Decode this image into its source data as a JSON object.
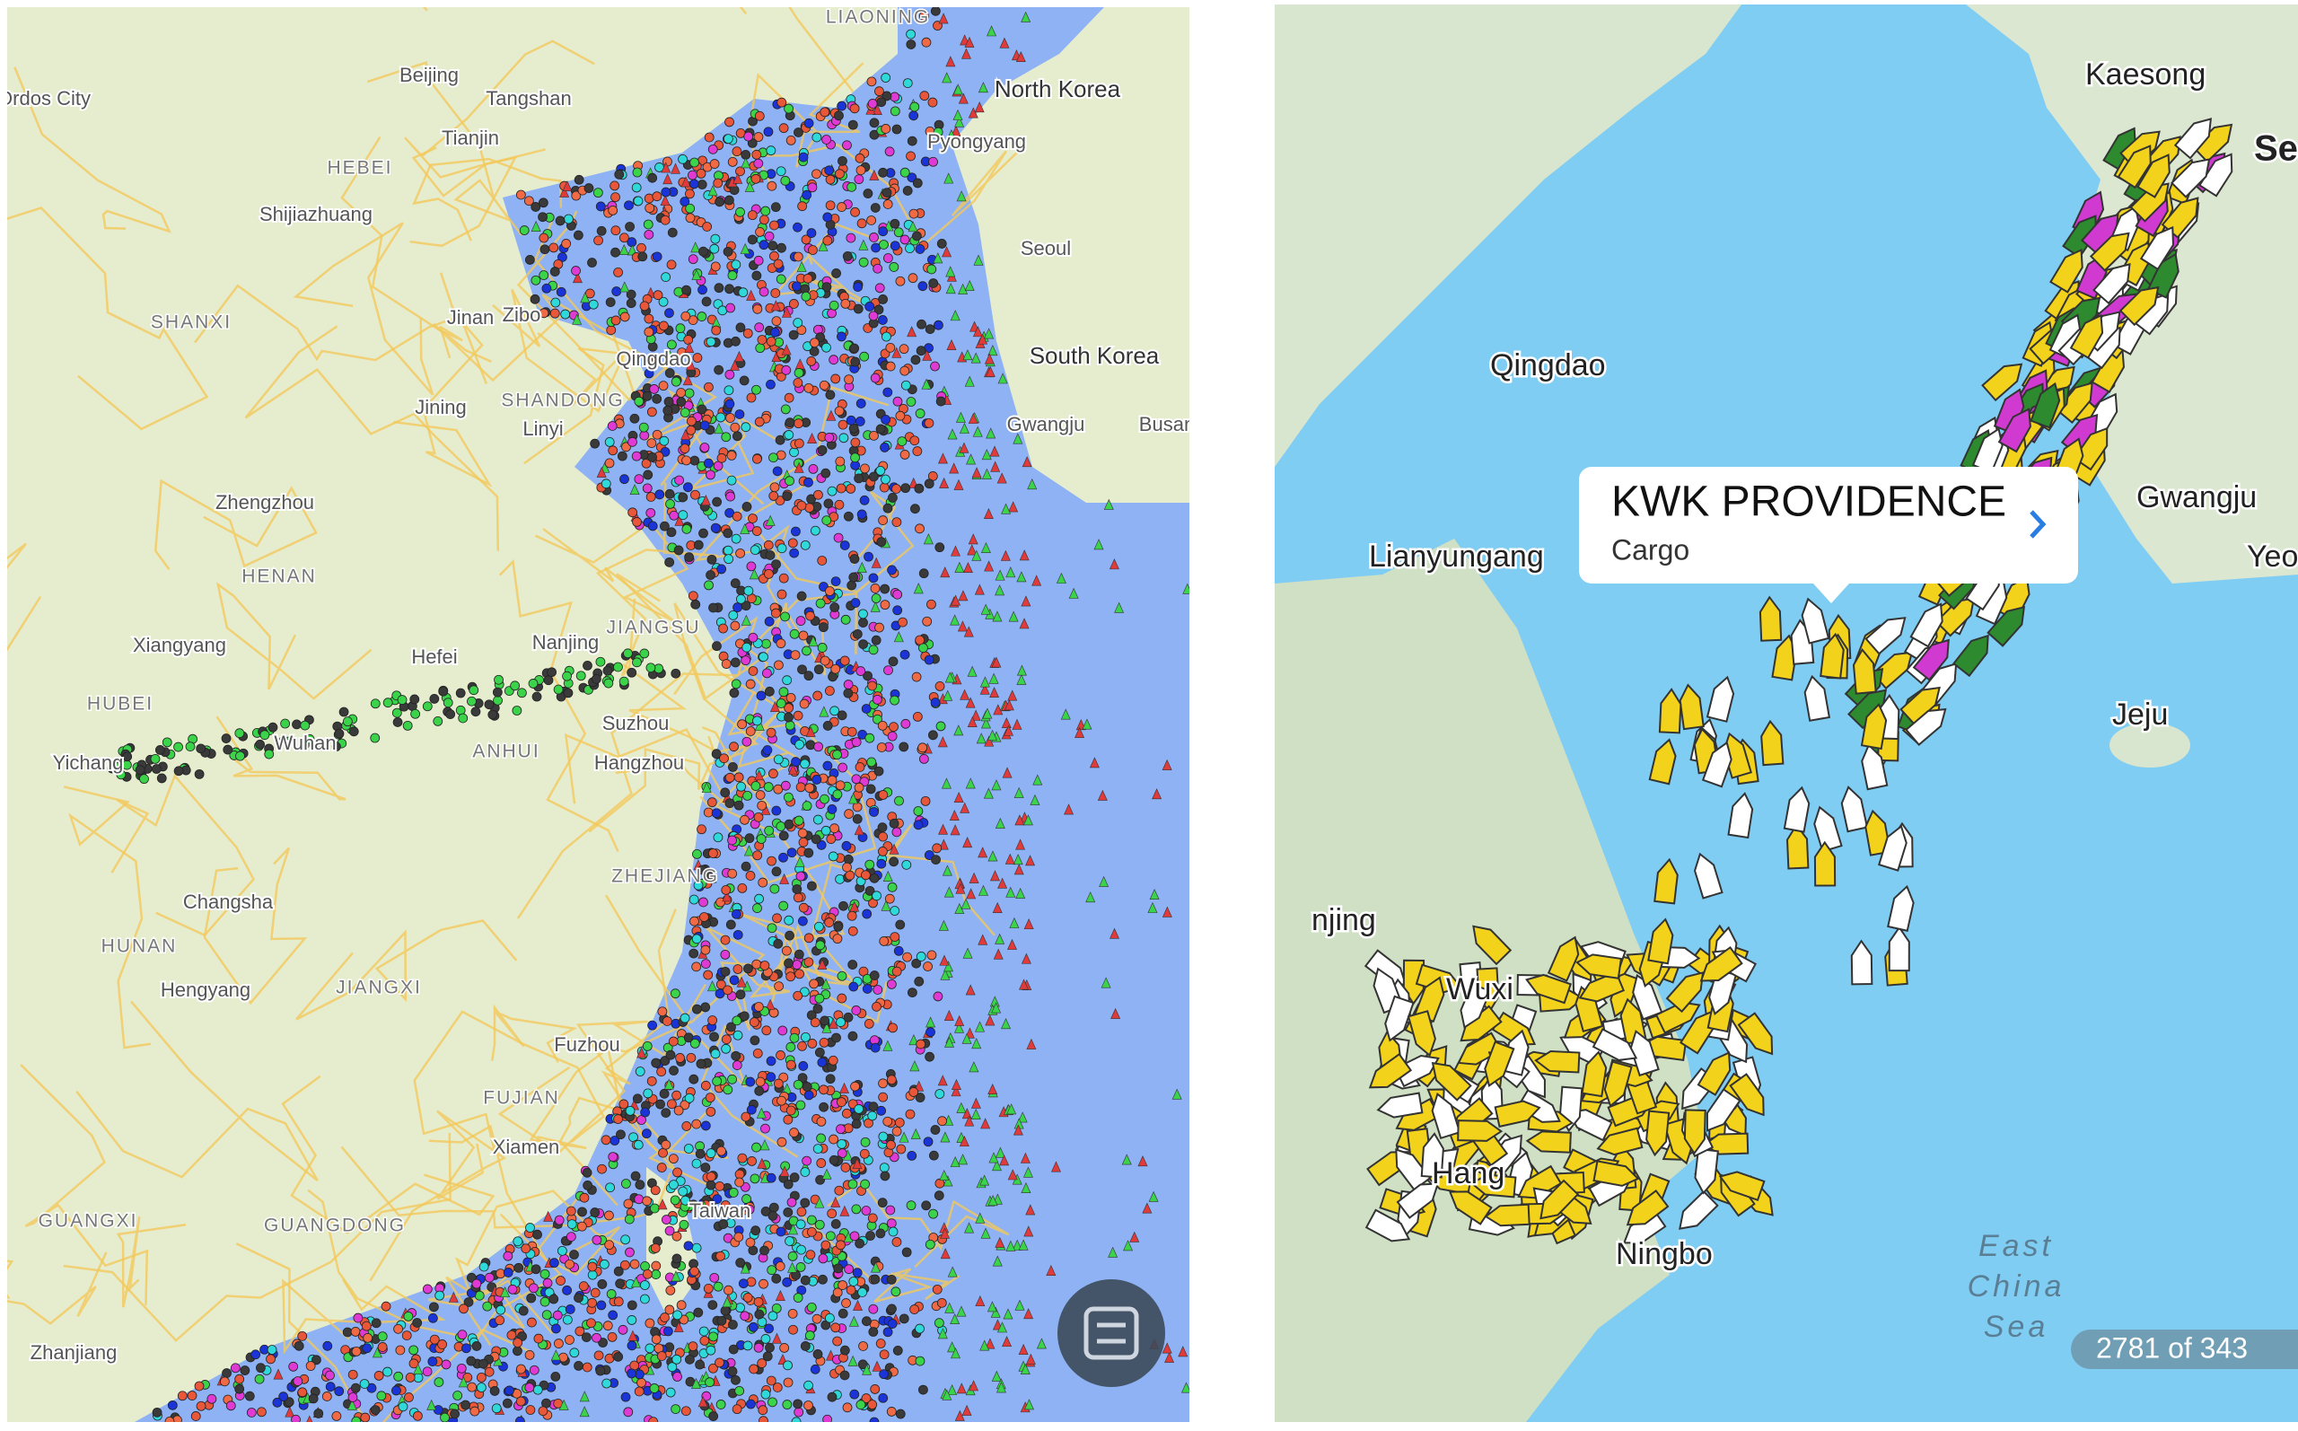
{
  "left_map": {
    "labels": [
      "Ordos City",
      "Beijing",
      "Tangshan",
      "Tianjin",
      "HEBEI",
      "Shijiazhuang",
      "LIAONING",
      "North Korea",
      "Pyongyang",
      "Seoul",
      "South Korea",
      "Gwangju",
      "Busan",
      "SHANXI",
      "Jinan",
      "Zibo",
      "Qingdao",
      "SHANDONG",
      "Jining",
      "Linyi",
      "Zhengzhou",
      "HENAN",
      "Xiangyang",
      "HUBEI",
      "Hefei",
      "Nanjing",
      "JIANGSU",
      "Suzhou",
      "Hangzhou",
      "ANHUI",
      "Wuhan",
      "Yichang",
      "Changsha",
      "HUNAN",
      "Hengyang",
      "JIANGXI",
      "ZHEJIANG",
      "Fuzhou",
      "FUJIAN",
      "Xiamen",
      "Taiwan",
      "GUANGXI",
      "GUANGDONG",
      "Zhanjiang"
    ]
  },
  "right_map": {
    "labels": [
      "Kaesong",
      "Seo",
      "Qingdao",
      "Lianyungang",
      "Gwangju",
      "Yeosu",
      "Jeju",
      "njing",
      "Wuxi",
      "Hang",
      "Ningbo"
    ],
    "sea_label": [
      "East",
      "China",
      "Sea"
    ],
    "popup": {
      "title": "KWK PROVIDENCE",
      "subtitle": "Cargo"
    },
    "vessel_count": "2781 of 343"
  }
}
